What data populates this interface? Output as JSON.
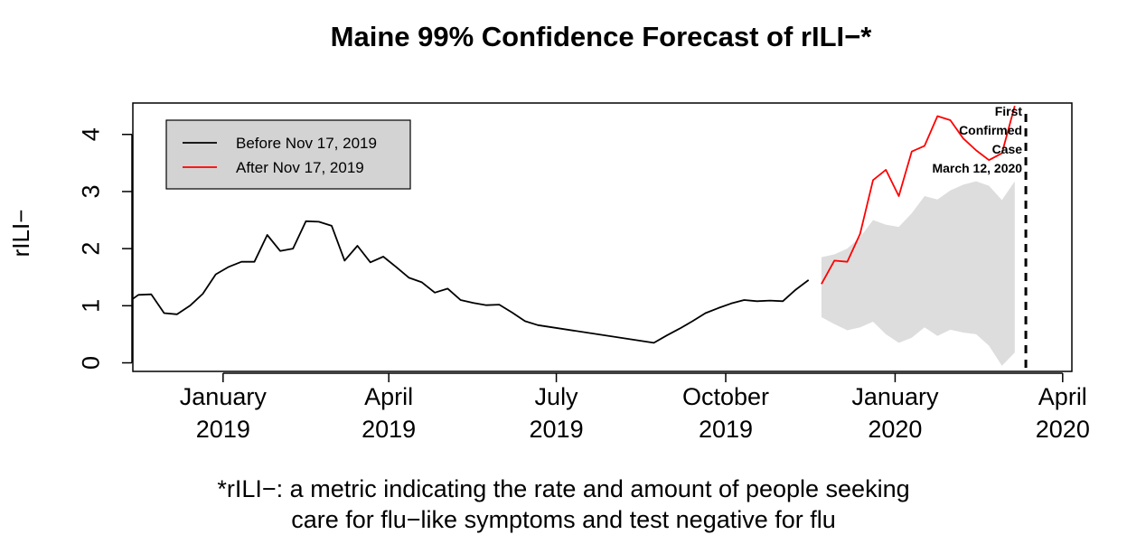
{
  "chart_data": {
    "type": "line",
    "title": "Maine 99% Confidence Forecast of rILI−*",
    "ylabel": "rILI−",
    "xlabel": "",
    "ylim": [
      -0.15,
      4.55
    ],
    "xlim": [
      "2018-11-13",
      "2020-04-06"
    ],
    "yticks": [
      0,
      1,
      2,
      3,
      4
    ],
    "xticks": [
      {
        "date": "2019-01-01",
        "line1": "January",
        "line2": "2019"
      },
      {
        "date": "2019-04-01",
        "line1": "April",
        "line2": "2019"
      },
      {
        "date": "2019-07-01",
        "line1": "July",
        "line2": "2019"
      },
      {
        "date": "2019-10-01",
        "line1": "October",
        "line2": "2019"
      },
      {
        "date": "2020-01-01",
        "line1": "January",
        "line2": "2020"
      },
      {
        "date": "2020-04-01",
        "line1": "April",
        "line2": "2020"
      }
    ],
    "legend": {
      "placement": "top-left",
      "entries": [
        {
          "label": "Before Nov 17, 2019",
          "color": "#000000"
        },
        {
          "label": "After Nov 17, 2019",
          "color": "#ff0000"
        }
      ]
    },
    "series": [
      {
        "name": "Before Nov 17, 2019",
        "color": "#000000",
        "points": [
          [
            "2018-11-13",
            1.12
          ],
          [
            "2018-11-16",
            1.19
          ],
          [
            "2018-11-23",
            1.2
          ],
          [
            "2018-11-30",
            0.87
          ],
          [
            "2018-12-07",
            0.85
          ],
          [
            "2018-12-14",
            1.0
          ],
          [
            "2018-12-21",
            1.21
          ],
          [
            "2018-12-28",
            1.55
          ],
          [
            "2019-01-04",
            1.68
          ],
          [
            "2019-01-11",
            1.77
          ],
          [
            "2019-01-18",
            1.77
          ],
          [
            "2019-01-25",
            2.24
          ],
          [
            "2019-02-01",
            1.96
          ],
          [
            "2019-02-08",
            2.0
          ],
          [
            "2019-02-15",
            2.48
          ],
          [
            "2019-02-22",
            2.47
          ],
          [
            "2019-03-01",
            2.4
          ],
          [
            "2019-03-08",
            1.79
          ],
          [
            "2019-03-15",
            2.05
          ],
          [
            "2019-03-22",
            1.76
          ],
          [
            "2019-03-29",
            1.86
          ],
          [
            "2019-04-05",
            1.68
          ],
          [
            "2019-04-12",
            1.49
          ],
          [
            "2019-04-19",
            1.41
          ],
          [
            "2019-04-26",
            1.23
          ],
          [
            "2019-05-03",
            1.3
          ],
          [
            "2019-05-10",
            1.1
          ],
          [
            "2019-05-17",
            1.05
          ],
          [
            "2019-05-24",
            1.01
          ],
          [
            "2019-05-31",
            1.02
          ],
          [
            "2019-06-07",
            0.88
          ],
          [
            "2019-06-14",
            0.73
          ],
          [
            "2019-06-21",
            0.66
          ],
          [
            "2019-08-23",
            0.35
          ],
          [
            "2019-08-30",
            0.48
          ],
          [
            "2019-09-06",
            0.6
          ],
          [
            "2019-09-13",
            0.73
          ],
          [
            "2019-09-20",
            0.87
          ],
          [
            "2019-09-27",
            0.96
          ],
          [
            "2019-10-04",
            1.04
          ],
          [
            "2019-10-11",
            1.1
          ],
          [
            "2019-10-18",
            1.08
          ],
          [
            "2019-10-25",
            1.09
          ],
          [
            "2019-11-01",
            1.08
          ],
          [
            "2019-11-08",
            1.28
          ],
          [
            "2019-11-15",
            1.45
          ]
        ]
      },
      {
        "name": "After Nov 17, 2019",
        "color": "#ff0000",
        "points": [
          [
            "2019-11-22",
            1.38
          ],
          [
            "2019-11-29",
            1.79
          ],
          [
            "2019-12-06",
            1.77
          ],
          [
            "2019-12-13",
            2.26
          ],
          [
            "2019-12-20",
            3.2
          ],
          [
            "2019-12-27",
            3.38
          ],
          [
            "2020-01-03",
            2.92
          ],
          [
            "2020-01-10",
            3.7
          ],
          [
            "2020-01-17",
            3.8
          ],
          [
            "2020-01-24",
            4.32
          ],
          [
            "2020-01-31",
            4.25
          ],
          [
            "2020-02-07",
            3.93
          ],
          [
            "2020-02-14",
            3.72
          ],
          [
            "2020-02-21",
            3.55
          ],
          [
            "2020-02-28",
            3.67
          ],
          [
            "2020-03-06",
            4.5
          ]
        ]
      }
    ],
    "confidence_band": {
      "color": "#dddddd",
      "upper": [
        [
          "2019-11-22",
          1.85
        ],
        [
          "2019-11-29",
          1.9
        ],
        [
          "2019-12-06",
          2.0
        ],
        [
          "2019-12-13",
          2.2
        ],
        [
          "2019-12-20",
          2.5
        ],
        [
          "2019-12-27",
          2.42
        ],
        [
          "2020-01-03",
          2.38
        ],
        [
          "2020-01-10",
          2.62
        ],
        [
          "2020-01-17",
          2.92
        ],
        [
          "2020-01-24",
          2.86
        ],
        [
          "2020-01-31",
          3.02
        ],
        [
          "2020-02-07",
          3.12
        ],
        [
          "2020-02-14",
          3.18
        ],
        [
          "2020-02-21",
          3.1
        ],
        [
          "2020-02-28",
          2.85
        ],
        [
          "2020-03-06",
          3.18
        ]
      ],
      "lower": [
        [
          "2019-11-22",
          0.8
        ],
        [
          "2019-11-29",
          0.68
        ],
        [
          "2019-12-06",
          0.57
        ],
        [
          "2019-12-13",
          0.62
        ],
        [
          "2019-12-20",
          0.72
        ],
        [
          "2019-12-27",
          0.5
        ],
        [
          "2020-01-03",
          0.35
        ],
        [
          "2020-01-10",
          0.44
        ],
        [
          "2020-01-17",
          0.62
        ],
        [
          "2020-01-24",
          0.47
        ],
        [
          "2020-01-31",
          0.58
        ],
        [
          "2020-02-07",
          0.53
        ],
        [
          "2020-02-14",
          0.5
        ],
        [
          "2020-02-21",
          0.3
        ],
        [
          "2020-02-28",
          -0.05
        ],
        [
          "2020-03-06",
          0.18
        ]
      ]
    },
    "event_line": {
      "date": "2020-03-12",
      "style": "dashed",
      "label_lines": [
        "First",
        "Confirmed",
        "Case",
        "March 12, 2020"
      ]
    }
  },
  "footnote": {
    "line1": "*rILI−: a metric indicating the rate and amount of people seeking",
    "line2": "care for flu−like symptoms and test negative for flu"
  }
}
